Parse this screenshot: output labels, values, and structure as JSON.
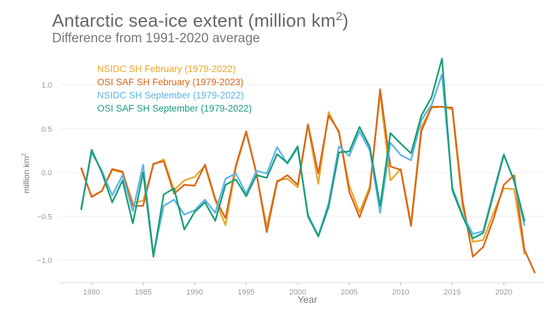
{
  "chart_data": {
    "type": "line",
    "title": "Antarctic sea-ice extent (million km",
    "title_sup": "2",
    "title_tail": ")",
    "subtitle": "Difference from 1991-2020 average",
    "xlabel": "Year",
    "ylabel": "million km",
    "ylabel_sup": "2",
    "xlim": [
      1977,
      2024
    ],
    "ylim": [
      -1.25,
      1.3
    ],
    "grid": true,
    "legend_position": "top-left",
    "xticks": [
      1980,
      1985,
      1990,
      1995,
      2000,
      2005,
      2010,
      2015,
      2020
    ],
    "yticks": [
      1.0,
      0.5,
      0.0,
      -0.5,
      -1.0
    ],
    "ytick_labels": [
      "1.0",
      "0.5",
      "0.0",
      "−0.5",
      "−1.0"
    ],
    "series": [
      {
        "name": "NSIDC SH February (1979-2022)",
        "color": "#E9A828",
        "x_start": 1979,
        "values": [
          0.04,
          -0.27,
          -0.21,
          0.03,
          0.0,
          -0.35,
          -0.32,
          0.09,
          0.15,
          -0.2,
          -0.09,
          -0.05,
          0.08,
          -0.32,
          -0.6,
          0.06,
          0.46,
          -0.02,
          -0.62,
          -0.09,
          -0.07,
          -0.17,
          0.54,
          -0.13,
          0.69,
          0.45,
          -0.15,
          -0.45,
          -0.16,
          0.9,
          -0.09,
          0.04,
          -0.58,
          0.52,
          0.74,
          0.75,
          0.72,
          -0.4,
          -0.79,
          -0.77,
          -0.46,
          -0.18,
          -0.19,
          -0.93
        ]
      },
      {
        "name": "OSI SAF SH February (1979-2023)",
        "color": "#D9661A",
        "x_start": 1979,
        "values": [
          0.05,
          -0.28,
          -0.21,
          0.04,
          0.01,
          -0.38,
          -0.38,
          0.1,
          0.13,
          -0.24,
          -0.14,
          -0.15,
          0.09,
          -0.3,
          -0.52,
          0.08,
          0.47,
          -0.01,
          -0.68,
          -0.11,
          -0.03,
          -0.14,
          0.55,
          -0.01,
          0.65,
          0.47,
          -0.22,
          -0.51,
          -0.19,
          0.95,
          0.07,
          0.03,
          -0.61,
          0.47,
          0.75,
          0.75,
          0.74,
          -0.32,
          -0.96,
          -0.85,
          -0.53,
          -0.14,
          -0.03,
          -0.88,
          -1.14
        ]
      },
      {
        "name": "NSIDC SH September (1979-2022)",
        "color": "#5DB4E8",
        "x_start": 1979,
        "values": [
          -0.4,
          0.23,
          0.02,
          -0.26,
          -0.03,
          -0.44,
          0.09,
          -0.94,
          -0.38,
          -0.31,
          -0.48,
          -0.43,
          -0.31,
          -0.46,
          -0.07,
          -0.01,
          -0.24,
          0.02,
          -0.01,
          0.29,
          0.1,
          0.28,
          -0.48,
          -0.72,
          -0.35,
          0.3,
          0.19,
          0.47,
          0.25,
          -0.46,
          0.34,
          0.2,
          0.14,
          0.6,
          0.77,
          1.12,
          -0.17,
          -0.48,
          -0.7,
          -0.67,
          -0.22,
          0.21,
          -0.1,
          -0.6
        ]
      },
      {
        "name": "OSI SAF SH September (1979-2022)",
        "color": "#1A9E77",
        "x_start": 1979,
        "values": [
          -0.42,
          0.26,
          0.0,
          -0.34,
          -0.09,
          -0.58,
          0.0,
          -0.96,
          -0.25,
          -0.18,
          -0.65,
          -0.45,
          -0.34,
          -0.55,
          -0.14,
          -0.08,
          -0.27,
          -0.03,
          -0.06,
          0.21,
          0.11,
          0.3,
          -0.5,
          -0.73,
          -0.39,
          0.23,
          0.24,
          0.52,
          0.29,
          -0.38,
          0.45,
          0.33,
          0.22,
          0.65,
          0.86,
          1.3,
          -0.2,
          -0.5,
          -0.75,
          -0.69,
          -0.25,
          0.2,
          -0.09,
          -0.55
        ]
      }
    ]
  }
}
